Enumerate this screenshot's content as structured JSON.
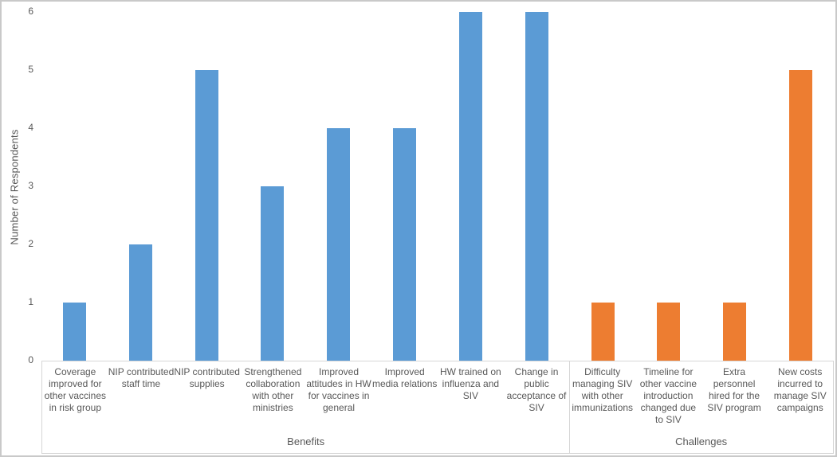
{
  "chart_data": {
    "type": "bar",
    "title": "",
    "xlabel": "",
    "ylabel": "Number of Respondents",
    "ylim": [
      0,
      6
    ],
    "yticks": [
      0,
      1,
      2,
      3,
      4,
      5,
      6
    ],
    "grid": false,
    "legend": "none",
    "groups": [
      {
        "label": "Benefits",
        "color": "#5B9BD5",
        "categories": [
          "Coverage improved for other vaccines in risk group",
          "NIP contributed staff time",
          "NIP contributed supplies",
          "Strengthened collaboration with other ministries",
          "Improved attitudes in HW for vaccines in general",
          "Improved media relations",
          "HW trained on influenza and SIV",
          "Change in public acceptance of SIV"
        ],
        "values": [
          1,
          2,
          5,
          3,
          4,
          4,
          6,
          6
        ]
      },
      {
        "label": "Challenges",
        "color": "#ED7D31",
        "categories": [
          "Difficulty managing SIV with other immunizations",
          "Timeline for other vaccine introduction changed due to SIV",
          "Extra personnel hired for the SIV program",
          "New costs incurred to manage SIV campaigns"
        ],
        "values": [
          1,
          1,
          1,
          5
        ]
      }
    ]
  },
  "colors": {
    "benefits_bar": "#5B9BD5",
    "challenges_bar": "#ED7D31",
    "axis_text": "#595959",
    "axis_box_line": "#D6D6D6",
    "frame_border": "#C9C9C9",
    "background": "#FFFFFF"
  }
}
